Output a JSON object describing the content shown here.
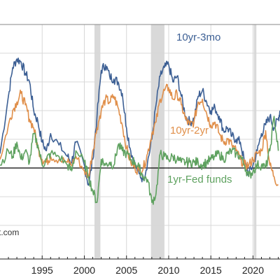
{
  "chart_data": {
    "type": "line",
    "title": "",
    "xlabel": "",
    "ylabel": "",
    "xlim": [
      1990.0,
      2023.2
    ],
    "ylim": [
      -3.0,
      5.0
    ],
    "x_ticks": [
      1995,
      2000,
      2005,
      2010,
      2015,
      2020
    ],
    "x_tick_labels": [
      "1995",
      "2000",
      "2005",
      "2010",
      "2015",
      "2020"
    ],
    "zero_line": 0,
    "grid": true,
    "recessions": [
      [
        2001.2,
        2001.9
      ],
      [
        2007.9,
        2009.5
      ],
      [
        2020.1,
        2020.4
      ]
    ],
    "series": [
      {
        "name": "10yr-3mo",
        "color": "#3c5f94",
        "x": [
          1990,
          1991,
          1991.5,
          1992,
          1992.5,
          1993,
          1993.5,
          1994,
          1994.5,
          1995,
          1995.5,
          1996,
          1997,
          1998,
          1998.5,
          1999,
          2000,
          2000.5,
          2001,
          2001.5,
          2002,
          2002.5,
          2003,
          2003.5,
          2004,
          2004.5,
          2005,
          2005.5,
          2006,
          2006.5,
          2007,
          2007.5,
          2008,
          2008.5,
          2009,
          2009.5,
          2010,
          2010.5,
          2011,
          2011.5,
          2012,
          2012.5,
          2013,
          2013.5,
          2014,
          2014.5,
          2015,
          2015.5,
          2016,
          2016.5,
          2017,
          2017.5,
          2018,
          2018.5,
          2019,
          2019.5,
          2020,
          2020.5,
          2021,
          2021.5,
          2022,
          2022.5,
          2023,
          2023.2
        ],
        "values": [
          0.5,
          2.5,
          3.5,
          3.8,
          3.7,
          3.3,
          3.0,
          2.0,
          1.6,
          0.9,
          0.6,
          1.2,
          0.8,
          0.4,
          0.2,
          0.9,
          0.1,
          -0.6,
          0.3,
          1.8,
          3.4,
          3.6,
          3.2,
          3.1,
          3.0,
          2.6,
          1.4,
          0.6,
          0.1,
          -0.2,
          -0.4,
          0.2,
          1.0,
          2.2,
          3.2,
          3.5,
          3.6,
          3.0,
          3.2,
          2.5,
          1.8,
          1.6,
          1.7,
          2.5,
          2.7,
          2.3,
          2.0,
          2.1,
          1.8,
          1.3,
          1.4,
          1.1,
          1.0,
          0.9,
          0.2,
          -0.2,
          0.1,
          0.6,
          1.2,
          1.5,
          1.8,
          1.4,
          1.7,
          2.0
        ]
      },
      {
        "name": "10yr-2yr",
        "color": "#e08f4a",
        "x": [
          1990,
          1991,
          1991.5,
          1992,
          1992.5,
          1993,
          1993.5,
          1994,
          1994.5,
          1995,
          1995.5,
          1996,
          1997,
          1998,
          1998.5,
          1999,
          2000,
          2000.5,
          2001,
          2001.5,
          2002,
          2002.5,
          2003,
          2003.5,
          2004,
          2004.5,
          2005,
          2005.5,
          2006,
          2006.5,
          2007,
          2007.5,
          2008,
          2008.5,
          2009,
          2009.5,
          2010,
          2010.5,
          2011,
          2011.5,
          2012,
          2012.5,
          2013,
          2013.5,
          2014,
          2014.5,
          2015,
          2015.5,
          2016,
          2016.5,
          2017,
          2017.5,
          2018,
          2018.5,
          2019,
          2019.5,
          2020,
          2020.5,
          2021,
          2021.5,
          2022,
          2022.5,
          2023
        ],
        "values": [
          0.3,
          1.5,
          2.0,
          2.3,
          2.6,
          2.2,
          1.7,
          1.4,
          0.7,
          0.3,
          0.2,
          0.4,
          0.3,
          0.2,
          0.1,
          0.4,
          -0.1,
          -0.3,
          0.6,
          1.4,
          2.0,
          2.4,
          2.3,
          2.5,
          2.1,
          1.5,
          0.7,
          0.2,
          0.0,
          -0.1,
          0.0,
          0.5,
          1.2,
          1.6,
          2.4,
          2.7,
          2.8,
          2.4,
          2.6,
          2.2,
          1.7,
          1.5,
          1.6,
          2.3,
          2.4,
          1.9,
          1.5,
          1.6,
          1.2,
          0.9,
          1.0,
          0.8,
          0.6,
          0.3,
          0.1,
          0.1,
          0.3,
          0.5,
          0.6,
          1.3,
          0.1,
          -0.3,
          -0.6
        ]
      },
      {
        "name": "1yr-Fed funds",
        "color": "#5fa260",
        "x": [
          1990,
          1991,
          1991.5,
          1992,
          1992.5,
          1993,
          1993.5,
          1994,
          1994.5,
          1995,
          1995.5,
          1996,
          1997,
          1998,
          1998.5,
          1999,
          2000,
          2000.5,
          2001,
          2001.5,
          2002,
          2002.5,
          2003,
          2003.5,
          2004,
          2004.5,
          2005,
          2005.5,
          2006,
          2006.5,
          2007,
          2007.5,
          2008,
          2008.5,
          2009,
          2009.5,
          2010,
          2010.5,
          2011,
          2011.5,
          2012,
          2012.5,
          2013,
          2013.5,
          2014,
          2014.5,
          2015,
          2015.5,
          2016,
          2016.5,
          2017,
          2017.5,
          2018,
          2018.5,
          2019,
          2019.5,
          2020,
          2020.5,
          2021,
          2021.5,
          2022,
          2022.5,
          2023
        ],
        "values": [
          0.1,
          0.6,
          0.4,
          0.9,
          0.3,
          0.6,
          0.2,
          1.2,
          0.8,
          0.1,
          0.3,
          0.5,
          0.4,
          0.1,
          -0.1,
          0.6,
          0.2,
          -0.3,
          -0.8,
          -1.2,
          0.3,
          0.1,
          0.2,
          0.1,
          0.8,
          0.6,
          0.5,
          0.3,
          0.2,
          0.0,
          -0.3,
          -0.4,
          -1.2,
          -0.9,
          0.5,
          0.4,
          0.3,
          0.4,
          0.3,
          0.2,
          0.2,
          0.2,
          0.2,
          0.2,
          0.1,
          0.2,
          0.3,
          0.4,
          0.5,
          0.3,
          0.5,
          0.6,
          0.5,
          0.4,
          0.1,
          -0.3,
          -0.1,
          0.1,
          0.1,
          0.0,
          0.6,
          1.8,
          0.6
        ]
      }
    ],
    "series_labels": [
      {
        "text": "10yr-3mo",
        "color": "#3c5f94"
      },
      {
        "text": "10yr-2yr",
        "color": "#e08f4a"
      },
      {
        "text": "1yr-Fed funds",
        "color": "#5fa260"
      }
    ],
    "watermark": "t.com",
    "colors": {
      "axis": "#222222",
      "grid": "#d8d8d8",
      "recession": "#d9d9d9",
      "background": "#ffffff"
    }
  }
}
